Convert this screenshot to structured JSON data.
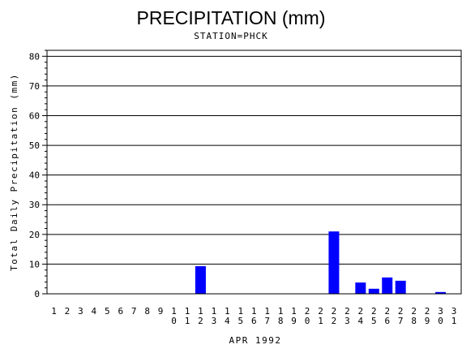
{
  "chart_data": {
    "type": "bar",
    "title": "PRECIPITATION (mm)",
    "subtitle": "STATION=PHCK",
    "ylabel": "Total Daily Precipitation (mm)",
    "xlabel": "APR 1992",
    "ylim": [
      0,
      82
    ],
    "yticks": [
      0,
      10,
      20,
      30,
      40,
      50,
      60,
      70,
      80
    ],
    "grid": true,
    "bar_color": "#0000ff",
    "categories": [
      "1",
      "2",
      "3",
      "4",
      "5",
      "6",
      "7",
      "8",
      "9",
      "10",
      "11",
      "12",
      "13",
      "14",
      "15",
      "16",
      "17",
      "18",
      "19",
      "20",
      "21",
      "22",
      "23",
      "24",
      "25",
      "26",
      "27",
      "28",
      "29",
      "30",
      "31"
    ],
    "values": [
      0,
      0,
      0,
      0,
      0,
      0,
      0,
      0,
      0,
      0,
      0,
      9.3,
      0,
      0,
      0,
      0,
      0,
      0,
      0,
      0,
      0,
      21,
      0,
      3.8,
      1.7,
      5.5,
      4.4,
      0,
      0,
      0.6,
      0
    ]
  }
}
